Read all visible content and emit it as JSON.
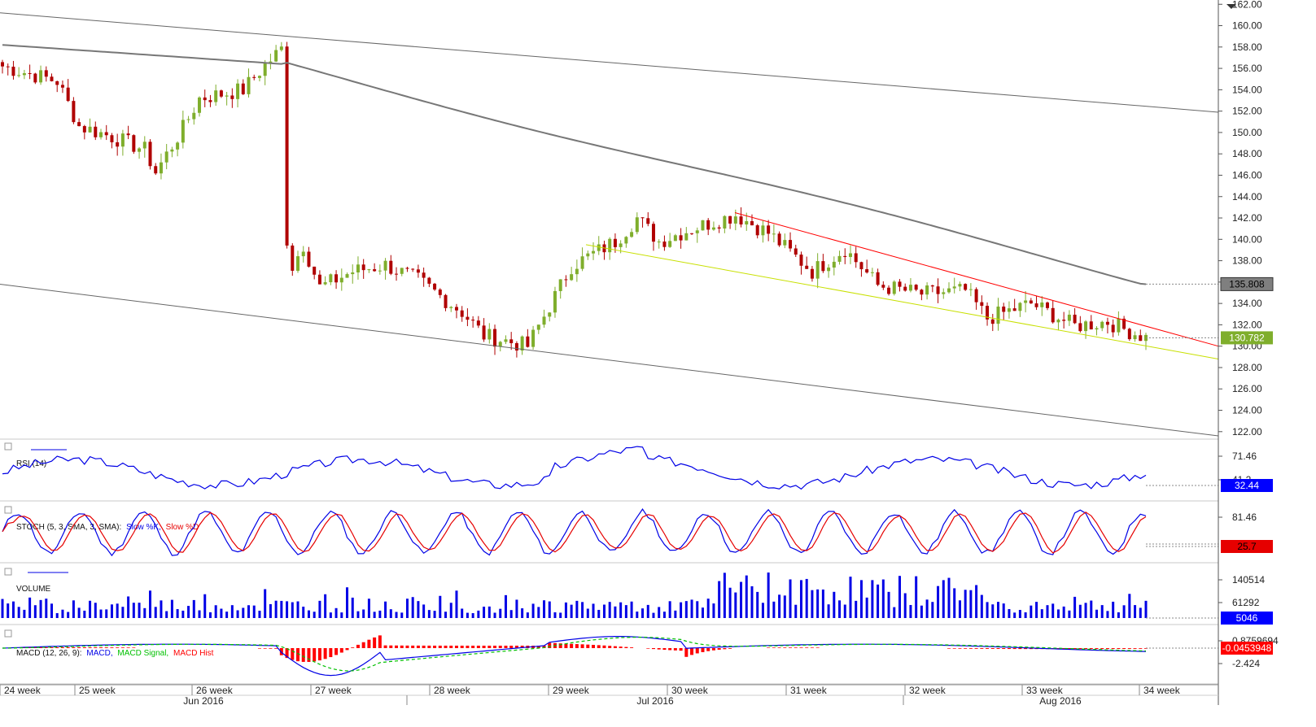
{
  "chart_data": {
    "type": "candlestick",
    "main": {
      "price_ticks": [
        "162.00",
        "160.00",
        "158.00",
        "156.00",
        "154.00",
        "152.00",
        "150.00",
        "148.00",
        "146.00",
        "144.00",
        "142.00",
        "140.00",
        "138.00",
        "136.00",
        "134.00",
        "132.00",
        "130.00",
        "128.00",
        "126.00",
        "124.00",
        "122.00"
      ],
      "ylim": [
        121.3,
        162.4
      ],
      "last_price": "130.782",
      "ma_value": "135.808",
      "colors": {
        "bull": "#7fae2c",
        "bear": "#b00000",
        "ma": "#777777",
        "channel": "#666666",
        "resistance": "#ff0000",
        "support": "#c8e000",
        "last_tag": "#7fae2c",
        "ma_tag": "#7f7f7f"
      }
    },
    "rsi": {
      "label": "RSI (14)",
      "ticks": [
        "71.46",
        "41.2"
      ],
      "last": "32.44",
      "color": "#0000e6"
    },
    "stoch": {
      "label_prefix": "STOCH (5, 3, SMA, 3, SMA):",
      "k_label": "Slow %K,",
      "d_label": "Slow %D",
      "ticks": [
        "81.46"
      ],
      "last": "25.7",
      "k_color": "#0000e6",
      "d_color": "#e60000"
    },
    "volume": {
      "label": "VOLUME",
      "ticks": [
        "140514",
        "61292"
      ],
      "last": "5046",
      "color": "#0000e6"
    },
    "macd": {
      "label": "MACD (12, 26, 9):",
      "macd_label": "MACD,",
      "signal_label": "MACD Signal,",
      "hist_label": "MACD Hist",
      "ticks": [
        "0.8759694",
        "-2.424"
      ],
      "last": "-0.0453948",
      "macd_color": "#0000e6",
      "signal_color": "#00c000",
      "hist_color": "#ff0000"
    },
    "x_axis": {
      "weeks": [
        "24 week",
        "25 week",
        "26 week",
        "27 week",
        "28 week",
        "29 week",
        "30 week",
        "31 week",
        "32 week",
        "33 week",
        "34 week"
      ],
      "months": [
        "Jun 2016",
        "Jul 2016",
        "Aug 2016"
      ]
    }
  }
}
